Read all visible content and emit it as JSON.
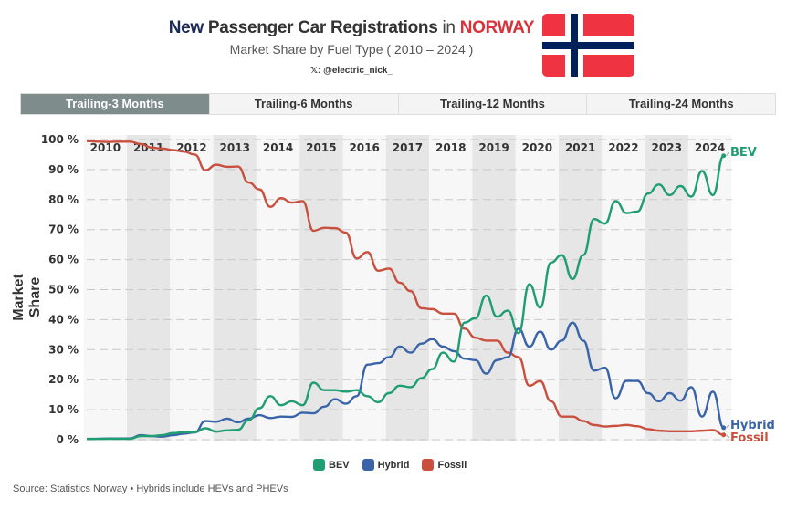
{
  "header": {
    "title_part1": "New",
    "title_part2": "Passenger Car Registrations",
    "title_part3": "in",
    "title_part4": "NORWAY",
    "subtitle": "Market Share by Fuel Type ( 2010 – 2024 )",
    "handle": "𝕏: @electric_nick_"
  },
  "flag": {
    "name": "norway-flag",
    "colors": {
      "red": "#ef3340",
      "white": "#ffffff",
      "blue": "#00205b"
    }
  },
  "tabs": [
    {
      "label": "Trailing-3 Months",
      "active": true
    },
    {
      "label": "Trailing-6 Months",
      "active": false
    },
    {
      "label": "Trailing-12 Months",
      "active": false
    },
    {
      "label": "Trailing-24 Months",
      "active": false
    }
  ],
  "legend": [
    {
      "label": "BEV",
      "color": "#1f9e72"
    },
    {
      "label": "Hybrid",
      "color": "#3a64a8"
    },
    {
      "label": "Fossil",
      "color": "#c9503f"
    }
  ],
  "footer": {
    "source_prefix": "Source:",
    "source_link": "Statistics Norway",
    "note": "• Hybrids include HEVs and PHEVs"
  },
  "chart_data": {
    "type": "line",
    "title": "New Passenger Car Registrations in NORWAY",
    "subtitle": "Market Share by Fuel Type ( 2010 – 2024 )",
    "ylabel": "Market Share",
    "xlabel": "",
    "ylim": [
      0,
      100
    ],
    "yticks": [
      "0 %",
      "10 %",
      "20 %",
      "30 %",
      "40 %",
      "50 %",
      "60 %",
      "70 %",
      "80 %",
      "90 %",
      "100 %"
    ],
    "year_labels": [
      "2010",
      "2011",
      "2012",
      "2013",
      "2014",
      "2015",
      "2016",
      "2017",
      "2018",
      "2019",
      "2020",
      "2021",
      "2022",
      "2023",
      "2024"
    ],
    "grid": true,
    "legend_position": "bottom",
    "x": [
      "2010-01",
      "2010-04",
      "2010-07",
      "2010-10",
      "2011-01",
      "2011-04",
      "2011-07",
      "2011-10",
      "2012-01",
      "2012-04",
      "2012-07",
      "2012-10",
      "2013-01",
      "2013-04",
      "2013-07",
      "2013-10",
      "2014-01",
      "2014-04",
      "2014-07",
      "2014-10",
      "2015-01",
      "2015-04",
      "2015-07",
      "2015-10",
      "2016-01",
      "2016-04",
      "2016-07",
      "2016-10",
      "2017-01",
      "2017-04",
      "2017-07",
      "2017-10",
      "2018-01",
      "2018-04",
      "2018-07",
      "2018-10",
      "2019-01",
      "2019-04",
      "2019-07",
      "2019-10",
      "2020-01",
      "2020-04",
      "2020-07",
      "2020-10",
      "2021-01",
      "2021-04",
      "2021-07",
      "2021-10",
      "2022-01",
      "2022-04",
      "2022-07",
      "2022-10",
      "2023-01",
      "2023-04",
      "2023-07",
      "2023-10",
      "2024-01",
      "2024-04",
      "2024-07",
      "2024-10"
    ],
    "series": [
      {
        "name": "BEV",
        "color": "#1f9e72",
        "values": [
          0.2,
          0.3,
          0.3,
          0.3,
          0.3,
          1.2,
          1.2,
          1.5,
          2.2,
          2.5,
          2.5,
          3.8,
          2.7,
          3.1,
          3.3,
          6.5,
          10.5,
          14.5,
          11.5,
          12.8,
          11.5,
          19,
          16.5,
          16.5,
          16,
          16.5,
          14.5,
          12.5,
          15.5,
          18,
          17.5,
          20.5,
          23.5,
          29,
          26,
          39,
          40.5,
          48,
          41,
          43,
          35.5,
          51.8,
          44,
          59,
          61.5,
          53.5,
          61.5,
          73.5,
          72,
          79.5,
          75.5,
          76,
          82,
          85,
          81.5,
          84.5,
          81,
          89.5,
          81.5,
          94.6
        ]
      },
      {
        "name": "Hybrid",
        "color": "#3a64a8",
        "values": [
          0.3,
          0.3,
          0.4,
          0.4,
          0.4,
          1.5,
          1.2,
          1.0,
          1.5,
          2.0,
          2.4,
          6.2,
          6.0,
          7.0,
          5.8,
          7.0,
          8.2,
          7.2,
          7.7,
          7.6,
          9.0,
          8.8,
          11,
          13.5,
          12,
          14.5,
          25,
          25.5,
          27.5,
          31,
          29,
          32,
          33.5,
          31,
          29.5,
          27,
          26.5,
          22,
          26.5,
          27.5,
          37,
          31,
          36,
          30,
          33,
          39,
          33,
          23,
          24,
          13.8,
          19.6,
          19.6,
          15.5,
          12.8,
          15.5,
          13,
          17.5,
          7.7,
          16,
          4
        ]
      },
      {
        "name": "Fossil",
        "color": "#c9503f",
        "values": [
          99.5,
          99.3,
          99.2,
          99.3,
          99.3,
          98.5,
          97.3,
          97,
          96.5,
          96,
          95,
          89.8,
          91.6,
          90.9,
          91,
          85.7,
          83.4,
          77.6,
          80.5,
          79,
          79.5,
          69.6,
          70.6,
          70.5,
          69,
          60.4,
          62.5,
          56.3,
          57,
          52.3,
          49.5,
          43.8,
          43.5,
          42,
          42,
          37,
          34,
          33,
          33,
          29,
          27.5,
          18,
          19.5,
          12.8,
          7.7,
          7.7,
          6.2,
          4.9,
          4.4,
          4.6,
          4.9,
          4.5,
          3.5,
          3.0,
          2.8,
          2.8,
          2.8,
          3.0,
          3.2,
          1.6
        ]
      }
    ]
  }
}
